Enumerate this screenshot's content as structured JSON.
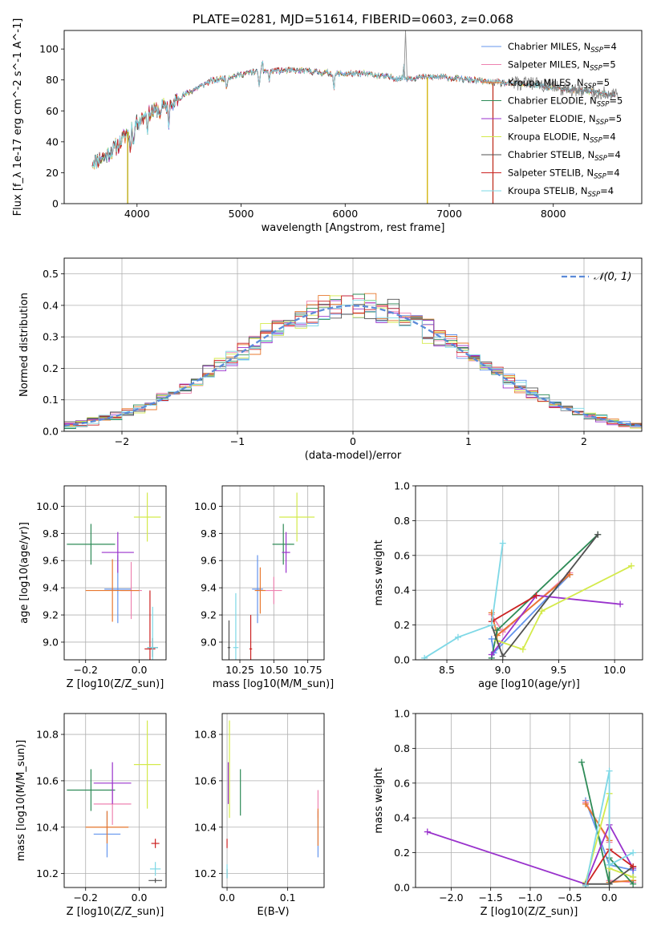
{
  "figure": {
    "title": "PLATE=0281, MJD=51614, FIBERID=0603, z=0.068"
  },
  "models": [
    {
      "name": "Chabrier MILES, N_SSP=4",
      "label": "Chabrier MILES, N",
      "sub": "SSP",
      "tail": "=4",
      "color": "#6495ed"
    },
    {
      "name": "Salpeter MILES, N_SSP=5",
      "label": "Salpeter MILES, N",
      "sub": "SSP",
      "tail": "=5",
      "color": "#ee82b0"
    },
    {
      "name": "Kroupa MILES, N_SSP=5",
      "label": "Kroupa MILES, N",
      "sub": "SSP",
      "tail": "=5",
      "color": "#e8782f"
    },
    {
      "name": "Chabrier ELODIE, N_SSP=5",
      "label": "Chabrier ELODIE, N",
      "sub": "SSP",
      "tail": "=5",
      "color": "#2e8b57"
    },
    {
      "name": "Salpeter ELODIE, N_SSP=5",
      "label": "Salpeter ELODIE, N",
      "sub": "SSP",
      "tail": "=5",
      "color": "#9932cc"
    },
    {
      "name": "Kroupa ELODIE, N_SSP=4",
      "label": "Kroupa ELODIE, N",
      "sub": "SSP",
      "tail": "=4",
      "color": "#d4ea4b"
    },
    {
      "name": "Chabrier STELIB, N_SSP=4",
      "label": "Chabrier STELIB, N",
      "sub": "SSP",
      "tail": "=4",
      "color": "#505050"
    },
    {
      "name": "Salpeter STELIB, N_SSP=4",
      "label": "Salpeter STELIB, N",
      "sub": "SSP",
      "tail": "=4",
      "color": "#cc2222"
    },
    {
      "name": "Kroupa STELIB, N_SSP=4",
      "label": "Kroupa STELIB, N",
      "sub": "SSP",
      "tail": "=4",
      "color": "#7ed8e6"
    }
  ],
  "chart_data": [
    {
      "id": "spectrum",
      "type": "line",
      "xlabel": "wavelength [Angstrom, rest frame]",
      "ylabel": "Flux [f_λ 1e-17 erg cm^-2 s^-1 A^-1]",
      "xlim": [
        3300,
        8850
      ],
      "ylim": [
        0,
        112
      ],
      "xticks": [
        4000,
        5000,
        6000,
        7000,
        8000
      ],
      "yticks": [
        0,
        20,
        40,
        60,
        80,
        100
      ],
      "continuum": [
        [
          3580,
          27
        ],
        [
          3700,
          31
        ],
        [
          3820,
          38
        ],
        [
          3950,
          50
        ],
        [
          4100,
          58
        ],
        [
          4300,
          64
        ],
        [
          4500,
          72
        ],
        [
          4700,
          79
        ],
        [
          4900,
          82
        ],
        [
          5100,
          85
        ],
        [
          5300,
          86
        ],
        [
          5600,
          86
        ],
        [
          5900,
          84
        ],
        [
          6200,
          84
        ],
        [
          6500,
          81
        ],
        [
          6900,
          82
        ],
        [
          7200,
          80
        ],
        [
          7500,
          78
        ],
        [
          7800,
          77
        ],
        [
          8100,
          74
        ],
        [
          8400,
          72
        ],
        [
          8600,
          70
        ]
      ],
      "absorption_lines": [
        [
          3934,
          13
        ],
        [
          3969,
          12
        ],
        [
          4102,
          8
        ],
        [
          4227,
          6
        ],
        [
          4305,
          12
        ],
        [
          4341,
          7
        ],
        [
          4861,
          6
        ],
        [
          5175,
          10
        ],
        [
          5270,
          6
        ],
        [
          5892,
          9
        ],
        [
          6563,
          4
        ]
      ],
      "emission_lines": [
        [
          6563,
          18
        ],
        [
          5205,
          10
        ]
      ],
      "spikes_down": [
        [
          3910,
          0
        ],
        [
          6790,
          0
        ],
        [
          7420,
          0
        ]
      ],
      "spike_up": [
        6580,
        112
      ],
      "grid": false,
      "legend_position": "upper right"
    },
    {
      "id": "residuals",
      "type": "line",
      "xlabel": "(data-model)/error",
      "ylabel": "Normed distribution",
      "xlim": [
        -2.5,
        2.5
      ],
      "ylim": [
        0,
        0.55
      ],
      "xticks": [
        -2,
        -1,
        0,
        1,
        2
      ],
      "yticks": [
        0.0,
        0.1,
        0.2,
        0.3,
        0.4,
        0.5
      ],
      "grid": true,
      "reference_curve": {
        "name": "𝒩(0, 1)",
        "mean": 0,
        "sigma": 1
      },
      "legend_position": "upper right"
    },
    {
      "id": "age_vs_Z",
      "type": "scatter",
      "xlabel": "Z [log10(Z/Z_sun)]",
      "ylabel": "age [log10(age/yr)]",
      "xlim": [
        -0.28,
        0.1
      ],
      "ylim": [
        8.87,
        10.15
      ],
      "xticks": [
        -0.2,
        0.0
      ],
      "yticks": [
        9.0,
        9.2,
        9.4,
        9.6,
        9.8,
        10.0
      ],
      "grid": true,
      "points": [
        {
          "x": -0.08,
          "y": 9.39,
          "xerr": 0.05,
          "yerr": 0.25
        },
        {
          "x": -0.03,
          "y": 9.38,
          "xerr": 0.04,
          "yerr": 0.21
        },
        {
          "x": -0.1,
          "y": 9.38,
          "xerr": 0.1,
          "yerr": 0.23
        },
        {
          "x": -0.18,
          "y": 9.72,
          "xerr": 0.09,
          "yerr": 0.15
        },
        {
          "x": -0.08,
          "y": 9.66,
          "xerr": 0.06,
          "yerr": 0.15
        },
        {
          "x": 0.03,
          "y": 9.92,
          "xerr": 0.05,
          "yerr": 0.18
        },
        {
          "x": 0.05,
          "y": 8.96,
          "xerr": 0.02,
          "yerr": 0.07
        },
        {
          "x": 0.04,
          "y": 8.95,
          "xerr": 0.02,
          "yerr": 0.43
        },
        {
          "x": 0.05,
          "y": 8.96,
          "xerr": 0.02,
          "yerr": 0.3
        }
      ]
    },
    {
      "id": "age_vs_mass",
      "type": "scatter",
      "xlabel": "mass [log10(M/M_sun)]",
      "ylabel": "",
      "xlim": [
        10.12,
        10.87
      ],
      "ylim": [
        8.87,
        10.15
      ],
      "xticks": [
        10.25,
        10.5,
        10.75
      ],
      "yticks": [
        9.0,
        9.2,
        9.4,
        9.6,
        9.8,
        10.0
      ],
      "grid": true,
      "points": [
        {
          "x": 10.38,
          "y": 9.39,
          "xerr": 0.04,
          "yerr": 0.25
        },
        {
          "x": 10.5,
          "y": 9.38,
          "xerr": 0.06,
          "yerr": 0.1
        },
        {
          "x": 10.4,
          "y": 9.38,
          "xerr": 0.04,
          "yerr": 0.17
        },
        {
          "x": 10.57,
          "y": 9.72,
          "xerr": 0.08,
          "yerr": 0.15
        },
        {
          "x": 10.59,
          "y": 9.66,
          "xerr": 0.03,
          "yerr": 0.15
        },
        {
          "x": 10.67,
          "y": 9.92,
          "xerr": 0.13,
          "yerr": 0.18
        },
        {
          "x": 10.17,
          "y": 8.96,
          "xerr": 0.01,
          "yerr": 0.2
        },
        {
          "x": 10.33,
          "y": 8.95,
          "xerr": 0.01,
          "yerr": 0.25
        },
        {
          "x": 10.22,
          "y": 8.96,
          "xerr": 0.02,
          "yerr": 0.4
        }
      ]
    },
    {
      "id": "weight_vs_age",
      "type": "line",
      "xlabel": "age [log10(age/yr)]",
      "ylabel": "mass weight",
      "xlim": [
        8.22,
        10.25
      ],
      "ylim": [
        0,
        1
      ],
      "xticks": [
        8.5,
        9.0,
        9.5,
        10.0
      ],
      "yticks": [
        0.0,
        0.2,
        0.4,
        0.6,
        0.8,
        1.0
      ],
      "grid": true,
      "series": [
        [
          [
            8.9,
            0.12
          ],
          [
            8.92,
            0.04
          ],
          [
            9.6,
            0.49
          ]
        ],
        [
          [
            8.9,
            0.26
          ],
          [
            9.0,
            0.16
          ],
          [
            9.6,
            0.5
          ]
        ],
        [
          [
            8.9,
            0.27
          ],
          [
            8.95,
            0.14
          ],
          [
            9.6,
            0.49
          ]
        ],
        [
          [
            8.9,
            0.01
          ],
          [
            8.95,
            0.17
          ],
          [
            9.85,
            0.72
          ]
        ],
        [
          [
            8.9,
            0.03
          ],
          [
            9.3,
            0.37
          ],
          [
            10.05,
            0.32
          ]
        ],
        [
          [
            8.95,
            0.11
          ],
          [
            9.18,
            0.06
          ],
          [
            9.35,
            0.28
          ],
          [
            10.15,
            0.54
          ]
        ],
        [
          [
            8.9,
            0.2
          ],
          [
            9.0,
            0.02
          ],
          [
            9.85,
            0.72
          ]
        ],
        [
          [
            8.9,
            0.22
          ],
          [
            9.3,
            0.37
          ]
        ],
        [
          [
            8.3,
            0.01
          ],
          [
            8.6,
            0.13
          ],
          [
            8.9,
            0.2
          ],
          [
            9.0,
            0.67
          ]
        ]
      ]
    },
    {
      "id": "mass_vs_Z",
      "type": "scatter",
      "xlabel": "Z [log10(Z/Z_sun)]",
      "ylabel": "mass [log10(M/M_sun)]",
      "xlim": [
        -0.28,
        0.1
      ],
      "ylim": [
        10.14,
        10.89
      ],
      "xticks": [
        -0.2,
        0.0
      ],
      "yticks": [
        10.2,
        10.4,
        10.6,
        10.8
      ],
      "grid": true,
      "points": [
        {
          "x": -0.12,
          "y": 10.37,
          "xerr": 0.05,
          "yerr": 0.1
        },
        {
          "x": -0.1,
          "y": 10.5,
          "xerr": 0.07,
          "yerr": 0.09
        },
        {
          "x": -0.12,
          "y": 10.4,
          "xerr": 0.08,
          "yerr": 0.07
        },
        {
          "x": -0.18,
          "y": 10.56,
          "xerr": 0.09,
          "yerr": 0.09
        },
        {
          "x": -0.1,
          "y": 10.59,
          "xerr": 0.07,
          "yerr": 0.09
        },
        {
          "x": 0.03,
          "y": 10.67,
          "xerr": 0.05,
          "yerr": 0.19
        },
        {
          "x": 0.06,
          "y": 10.17,
          "xerr": 0.025,
          "yerr": 0.01
        },
        {
          "x": 0.06,
          "y": 10.33,
          "xerr": 0.015,
          "yerr": 0.02
        },
        {
          "x": 0.06,
          "y": 10.22,
          "xerr": 0.02,
          "yerr": 0.03
        }
      ]
    },
    {
      "id": "mass_vs_EBV",
      "type": "scatter",
      "xlabel": "E(B-V)",
      "ylabel": "",
      "xlim": [
        -0.008,
        0.16
      ],
      "ylim": [
        10.14,
        10.89
      ],
      "xticks": [
        0.0,
        0.1
      ],
      "yticks": [
        10.2,
        10.4,
        10.6,
        10.8
      ],
      "grid": true,
      "points": [
        {
          "x": 0.15,
          "y": 10.37,
          "xerr": 0.0,
          "yerr": 0.1
        },
        {
          "x": 0.15,
          "y": 10.5,
          "xerr": 0.0,
          "yerr": 0.06
        },
        {
          "x": 0.15,
          "y": 10.4,
          "xerr": 0.0,
          "yerr": 0.08
        },
        {
          "x": 0.022,
          "y": 10.55,
          "xerr": 0.0,
          "yerr": 0.1
        },
        {
          "x": 0.002,
          "y": 10.59,
          "xerr": 0.0,
          "yerr": 0.09
        },
        {
          "x": 0.004,
          "y": 10.65,
          "xerr": 0.0,
          "yerr": 0.21
        },
        {
          "x": 0.0,
          "y": 10.2,
          "xerr": 0.0,
          "yerr": 0.02
        },
        {
          "x": 0.0,
          "y": 10.33,
          "xerr": 0.0,
          "yerr": 0.02
        },
        {
          "x": 0.0,
          "y": 10.21,
          "xerr": 0.0,
          "yerr": 0.03
        }
      ]
    },
    {
      "id": "weight_vs_Z",
      "type": "line",
      "xlabel": "Z [log10(Z/Z_sun)]",
      "ylabel": "mass weight",
      "xlim": [
        -2.45,
        0.42
      ],
      "ylim": [
        0,
        1
      ],
      "xticks": [
        -2.0,
        -1.5,
        -1.0,
        -0.5,
        0.0
      ],
      "yticks": [
        0.0,
        0.2,
        0.4,
        0.6,
        0.8,
        1.0
      ],
      "grid": true,
      "series": [
        [
          [
            -0.3,
            0.5
          ],
          [
            0.0,
            0.13
          ],
          [
            0.3,
            0.1
          ],
          [
            0.3,
            0.06
          ]
        ],
        [
          [
            -0.3,
            0.49
          ],
          [
            0.0,
            0.26
          ],
          [
            0.0,
            0.04
          ],
          [
            0.3,
            0.03
          ]
        ],
        [
          [
            -0.3,
            0.48
          ],
          [
            0.0,
            0.27
          ],
          [
            0.0,
            0.03
          ],
          [
            0.3,
            0.04
          ]
        ],
        [
          [
            -0.35,
            0.72
          ],
          [
            0.0,
            0.02
          ],
          [
            0.0,
            0.17
          ],
          [
            0.3,
            0.02
          ]
        ],
        [
          [
            -2.3,
            0.32
          ],
          [
            -0.3,
            0.02
          ],
          [
            0.0,
            0.36
          ],
          [
            0.3,
            0.11
          ]
        ],
        [
          [
            -0.3,
            0.03
          ],
          [
            0.0,
            0.54
          ],
          [
            0.0,
            0.11
          ],
          [
            0.3,
            0.06
          ]
        ],
        [
          [
            -0.3,
            0.02
          ],
          [
            0.0,
            0.02
          ],
          [
            0.3,
            0.12
          ]
        ],
        [
          [
            -0.3,
            0.01
          ],
          [
            0.0,
            0.22
          ],
          [
            0.3,
            0.12
          ]
        ],
        [
          [
            -0.3,
            0.01
          ],
          [
            0.0,
            0.67
          ],
          [
            0.0,
            0.13
          ],
          [
            0.3,
            0.2
          ]
        ]
      ]
    }
  ]
}
